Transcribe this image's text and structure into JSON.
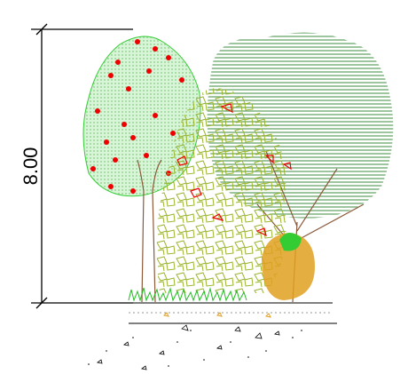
{
  "dimension": {
    "label": "8.00"
  }
}
